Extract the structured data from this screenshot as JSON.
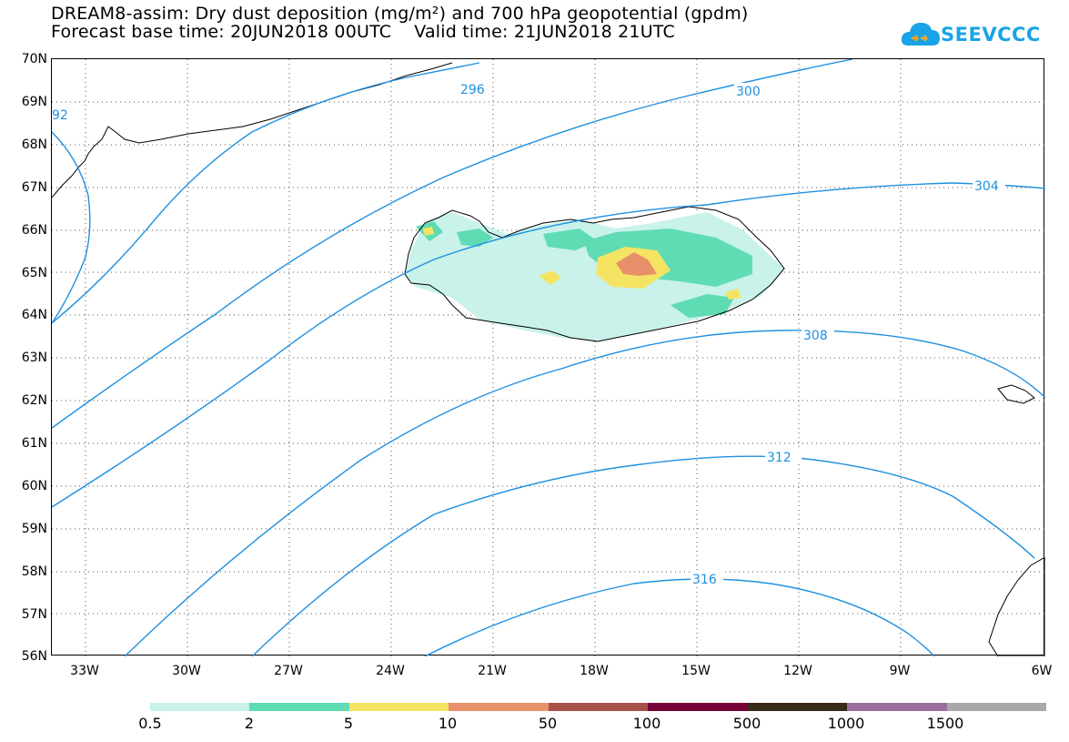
{
  "title": {
    "line1": "DREAM8-assim: Dry dust deposition (mg/m²) and 700 hPa geopotential (gpdm)",
    "line2": "Forecast base time: 20JUN2018 00UTC    Valid time: 21JUN2018 21UTC"
  },
  "logo": {
    "text": "SEEVCCC",
    "color": "#1aa3e6"
  },
  "map": {
    "lat_labels": [
      "70N",
      "69N",
      "68N",
      "67N",
      "66N",
      "65N",
      "64N",
      "63N",
      "62N",
      "61N",
      "60N",
      "59N",
      "58N",
      "57N",
      "56N"
    ],
    "lon_labels": [
      "33W",
      "30W",
      "27W",
      "24W",
      "21W",
      "18W",
      "15W",
      "12W",
      "9W",
      "6W"
    ],
    "contour_color": "#1e90e0",
    "contour_labels": [
      "92",
      "296",
      "300",
      "304",
      "308",
      "312",
      "316"
    ]
  },
  "legend": {
    "colors": [
      "#c8f2ea",
      "#5fdcb4",
      "#f5e464",
      "#e8906a",
      "#a8504a",
      "#78003a",
      "#3a2a18",
      "#9c6ea0",
      "#a8a8a8"
    ],
    "labels": [
      "0.5",
      "2",
      "5",
      "10",
      "50",
      "100",
      "500",
      "1000",
      "1500"
    ]
  }
}
